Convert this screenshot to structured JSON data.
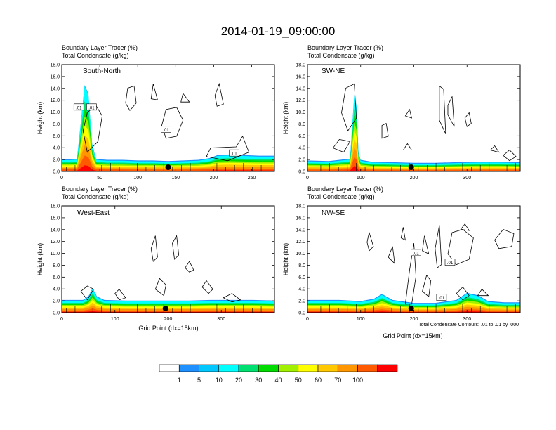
{
  "figure": {
    "title": "2014-01-19_09:00:00",
    "subtitle_line1": "Boundary Layer Tracer   (%)",
    "subtitle_line2": "Total Condensate   (g/kg)",
    "contour_note": "Total Condensate Contours: .01 to .01 by .000"
  },
  "chart_data": [
    {
      "type": "heatmap",
      "panel": "South-North",
      "title": "South-North",
      "subtitle": [
        "Boundary Layer Tracer   (%)",
        "Total Condensate   (g/kg)"
      ],
      "ylabel": "Height (km)",
      "xlabel": "",
      "xlim": [
        0,
        280
      ],
      "ylim": [
        0,
        18
      ],
      "xticks": [
        0,
        50,
        100,
        150,
        200,
        250
      ],
      "yticks": [
        "0.0",
        "2.0",
        "4.0",
        "6.0",
        "8.0",
        "10.0",
        "12.0",
        "14.0",
        "16.0",
        "18.0"
      ],
      "tracer_surface": {
        "x": [
          0,
          10,
          20,
          25,
          30,
          35,
          40,
          45,
          50,
          60,
          80,
          100,
          120,
          140,
          160,
          180,
          195,
          205,
          220,
          240,
          260,
          280
        ],
        "top_km": [
          1.9,
          1.9,
          2.0,
          8.0,
          14.4,
          13.0,
          4.5,
          2.0,
          1.9,
          1.8,
          1.8,
          1.7,
          1.7,
          1.6,
          1.7,
          1.8,
          2.1,
          2.6,
          2.7,
          2.6,
          2.5,
          2.5
        ]
      },
      "contour_labels": [
        ".01",
        ".01",
        ".01",
        ".01"
      ],
      "marker_x": 140
    },
    {
      "type": "heatmap",
      "panel": "SW-NE",
      "title": "SW-NE",
      "subtitle": [
        "Boundary Layer Tracer   (%)",
        "Total Condensate   (g/kg)"
      ],
      "ylabel": "Height (km)",
      "xlabel": "",
      "xlim": [
        0,
        400
      ],
      "ylim": [
        0,
        18
      ],
      "xticks": [
        0,
        100,
        200,
        300
      ],
      "yticks": [
        "0.0",
        "2.0",
        "4.0",
        "6.0",
        "8.0",
        "10.0",
        "12.0",
        "14.0",
        "16.0",
        "18.0"
      ],
      "tracer_surface": {
        "x": [
          0,
          40,
          80,
          88,
          92,
          96,
          100,
          120,
          160,
          200,
          240,
          280,
          320,
          360,
          400
        ],
        "top_km": [
          1.7,
          1.6,
          2.0,
          12.8,
          11.0,
          3.0,
          1.8,
          1.5,
          1.4,
          1.3,
          1.3,
          1.4,
          1.5,
          1.5,
          1.4
        ]
      },
      "contour_labels": [],
      "marker_x": 195
    },
    {
      "type": "heatmap",
      "panel": "West-East",
      "title": "West-East",
      "subtitle": [
        "Boundary Layer Tracer   (%)",
        "Total Condensate   (g/kg)"
      ],
      "ylabel": "Height (km)",
      "xlabel": "Grid Point (dx=15km)",
      "xlim": [
        0,
        400
      ],
      "ylim": [
        0,
        18
      ],
      "xticks": [
        0,
        100,
        200,
        300
      ],
      "yticks": [
        "0.0",
        "2.0",
        "4.0",
        "6.0",
        "8.0",
        "10.0",
        "12.0",
        "14.0",
        "16.0",
        "18.0"
      ],
      "tracer_surface": {
        "x": [
          0,
          40,
          50,
          58,
          66,
          80,
          120,
          160,
          200,
          240,
          280,
          320,
          360,
          400
        ],
        "top_km": [
          2.0,
          2.0,
          2.6,
          4.0,
          2.6,
          2.0,
          1.9,
          1.9,
          1.9,
          1.9,
          2.0,
          2.0,
          2.0,
          1.9
        ]
      },
      "contour_labels": [],
      "marker_x": 195
    },
    {
      "type": "heatmap",
      "panel": "NW-SE",
      "title": "NW-SE",
      "subtitle": [
        "Boundary Layer Tracer   (%)",
        "Total Condensate   (g/kg)"
      ],
      "ylabel": "Height (km)",
      "xlabel": "Grid Point (dx=15km)",
      "xlim": [
        0,
        400
      ],
      "ylim": [
        0,
        18
      ],
      "xticks": [
        0,
        100,
        200,
        300
      ],
      "yticks": [
        "0.0",
        "2.0",
        "4.0",
        "6.0",
        "8.0",
        "10.0",
        "12.0",
        "14.0",
        "16.0",
        "18.0"
      ],
      "tracer_surface": {
        "x": [
          0,
          60,
          100,
          125,
          140,
          160,
          200,
          240,
          280,
          300,
          320,
          340,
          370,
          400
        ],
        "top_km": [
          2.0,
          2.0,
          1.8,
          2.2,
          3.0,
          2.0,
          1.5,
          1.5,
          2.0,
          3.2,
          2.8,
          1.8,
          1.6,
          1.6
        ]
      },
      "contour_labels": [
        ".01",
        ".01",
        ".01"
      ],
      "marker_x": 195
    }
  ],
  "colorbar": {
    "labels": [
      "1",
      "5",
      "10",
      "20",
      "30",
      "40",
      "50",
      "60",
      "70",
      "100"
    ],
    "colors": [
      "#ffffff",
      "#1e90ff",
      "#00c8ff",
      "#00ffff",
      "#00e070",
      "#00dc00",
      "#a0f000",
      "#ffff00",
      "#ffc800",
      "#ff9600",
      "#ff5a00",
      "#ff0000"
    ]
  }
}
